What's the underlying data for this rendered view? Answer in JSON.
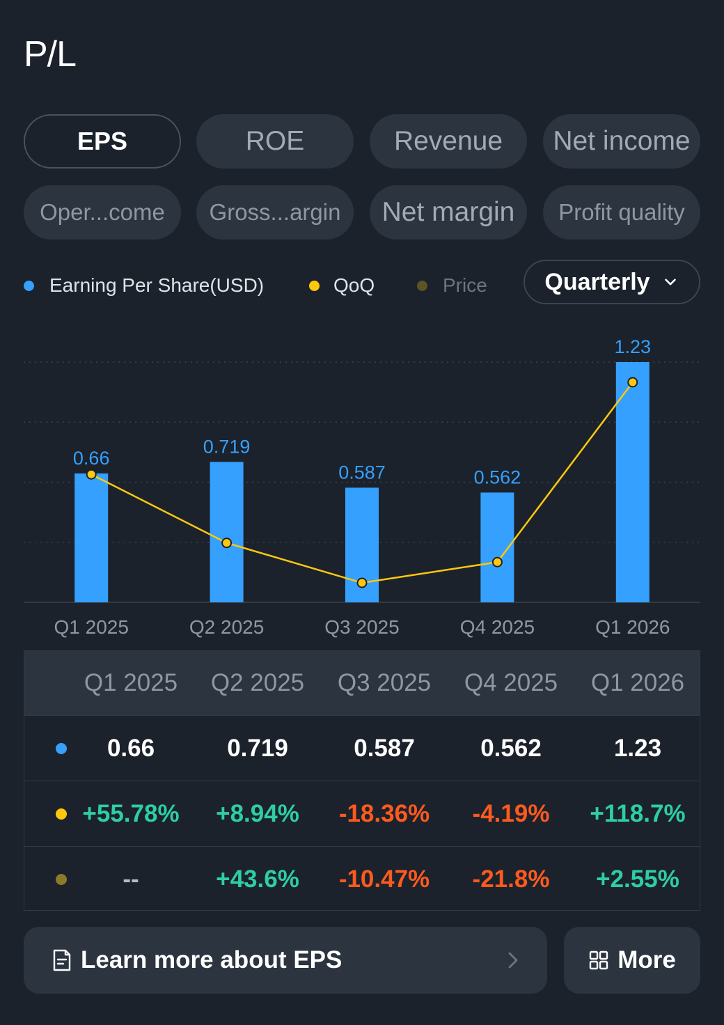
{
  "header": {
    "title": "P/L"
  },
  "tabs": [
    {
      "label": "EPS",
      "active": true
    },
    {
      "label": "ROE"
    },
    {
      "label": "Revenue"
    },
    {
      "label": "Net income"
    },
    {
      "label": "Oper...come"
    },
    {
      "label": "Gross...argin"
    },
    {
      "label": "Net margin"
    },
    {
      "label": "Profit quality"
    }
  ],
  "legend": [
    {
      "label": "Earning Per Share(USD)",
      "color": "#35a0fe"
    },
    {
      "label": "QoQ",
      "color": "#ffc80d"
    },
    {
      "label": "Price",
      "color": "#5a5426"
    }
  ],
  "period_selector": {
    "label": "Quarterly",
    "icon": "chevron-down-icon"
  },
  "chart_data": {
    "type": "bar",
    "categories": [
      "Q1 2025",
      "Q2 2025",
      "Q3 2025",
      "Q4 2025",
      "Q1 2026"
    ],
    "series": [
      {
        "name": "Earning Per Share(USD)",
        "type": "bar",
        "values": [
          0.66,
          0.719,
          0.587,
          0.562,
          1.23
        ],
        "labels": [
          "0.66",
          "0.719",
          "0.587",
          "0.562",
          "1.23"
        ]
      },
      {
        "name": "QoQ",
        "type": "line",
        "values": [
          55.78,
          8.94,
          -18.36,
          -4.19,
          118.7
        ]
      }
    ],
    "colors": {
      "bar": "#35a0fe",
      "line": "#ffc80d"
    },
    "grid": true
  },
  "table": {
    "headers": [
      "Q1 2025",
      "Q2 2025",
      "Q3 2025",
      "Q4 2025",
      "Q1 2026"
    ],
    "rows": [
      {
        "dot_color": "#35a0fe",
        "cells": [
          "0.66",
          "0.719",
          "0.587",
          "0.562",
          "1.23"
        ]
      },
      {
        "dot_color": "#ffc80d",
        "cells": [
          "+55.78%",
          "+8.94%",
          "-18.36%",
          "-4.19%",
          "+118.7%"
        ]
      },
      {
        "dot_color": "#8a7a2a",
        "cells": [
          "--",
          "+43.6%",
          "-10.47%",
          "-21.8%",
          "+2.55%"
        ]
      }
    ]
  },
  "footer": {
    "learn_label": "Learn more about EPS",
    "learn_icon": "document-icon",
    "more_label": "More",
    "more_icon": "grid-icon"
  }
}
